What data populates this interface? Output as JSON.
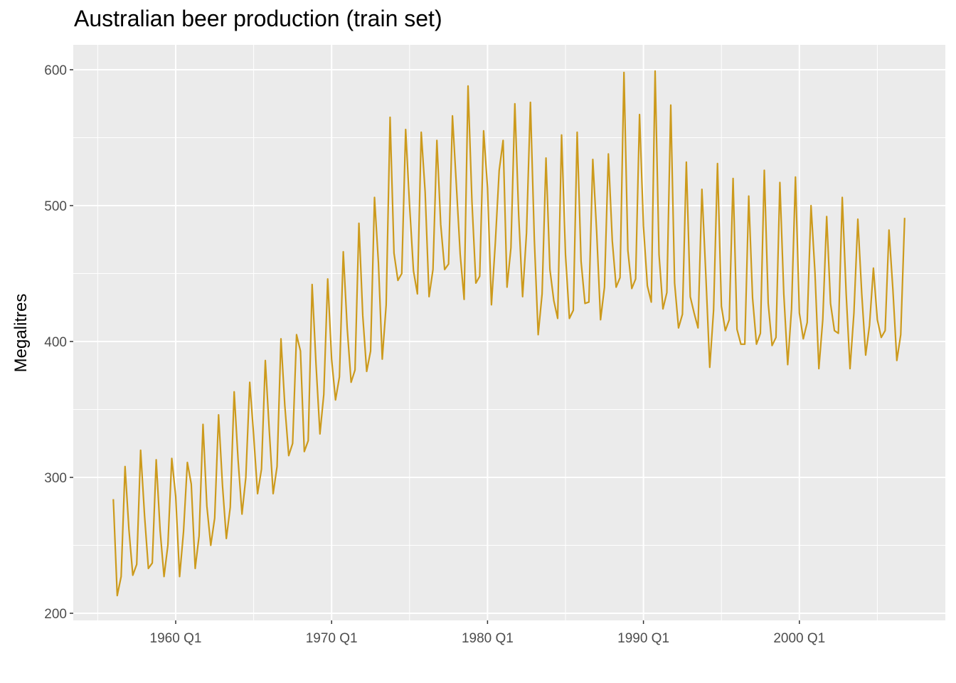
{
  "chart_data": {
    "type": "line",
    "title": "Australian beer production (train set)",
    "xlabel": "",
    "ylabel": "Megalitres",
    "ylim": [
      190,
      620
    ],
    "xlim": [
      1954.5,
      2007.5
    ],
    "grid": true,
    "line_color": "#CC9A1C",
    "start": "1956 Q1",
    "frequency": "quarterly",
    "x_ticks": [
      {
        "value": 1960,
        "label": "1960 Q1"
      },
      {
        "value": 1970,
        "label": "1970 Q1"
      },
      {
        "value": 1980,
        "label": "1980 Q1"
      },
      {
        "value": 1990,
        "label": "1990 Q1"
      },
      {
        "value": 2000,
        "label": "2000 Q1"
      }
    ],
    "y_ticks": [
      {
        "value": 200,
        "label": "200"
      },
      {
        "value": 300,
        "label": "300"
      },
      {
        "value": 400,
        "label": "400"
      },
      {
        "value": 500,
        "label": "500"
      },
      {
        "value": 600,
        "label": "600"
      }
    ],
    "values": [
      284,
      213,
      227,
      308,
      262,
      228,
      236,
      320,
      272,
      233,
      237,
      313,
      261,
      227,
      250,
      314,
      286,
      227,
      260,
      311,
      295,
      233,
      257,
      339,
      279,
      250,
      270,
      346,
      294,
      255,
      278,
      363,
      313,
      273,
      300,
      370,
      331,
      288,
      306,
      386,
      335,
      288,
      308,
      402,
      353,
      316,
      325,
      405,
      393,
      319,
      327,
      442,
      383,
      332,
      361,
      446,
      387,
      357,
      374,
      466,
      410,
      370,
      379,
      487,
      419,
      378,
      393,
      506,
      458,
      387,
      427,
      565,
      465,
      445,
      450,
      556,
      500,
      452,
      435,
      554,
      510,
      433,
      453,
      548,
      486,
      453,
      457,
      566,
      515,
      464,
      431,
      588,
      503,
      443,
      448,
      555,
      513,
      427,
      473,
      526,
      548,
      440,
      469,
      575,
      493,
      433,
      480,
      576,
      475,
      405,
      435,
      535,
      453,
      430,
      417,
      552,
      464,
      417,
      423,
      554,
      459,
      428,
      429,
      534,
      481,
      416,
      440,
      538,
      474,
      440,
      447,
      598,
      467,
      439,
      446,
      567,
      485,
      441,
      429,
      599,
      464,
      424,
      436,
      574,
      443,
      410,
      420,
      532,
      433,
      421,
      410,
      512,
      449,
      381,
      423,
      531,
      426,
      408,
      416,
      520,
      409,
      398,
      398,
      507,
      432,
      398,
      406,
      526,
      428,
      397,
      403,
      517,
      435,
      383,
      424,
      521,
      421,
      402,
      414,
      500,
      451,
      380,
      416,
      492,
      428,
      408,
      406,
      506,
      435,
      380,
      421,
      490,
      435,
      390,
      412,
      454,
      416,
      403,
      408,
      482,
      438,
      386,
      405,
      491
    ]
  }
}
